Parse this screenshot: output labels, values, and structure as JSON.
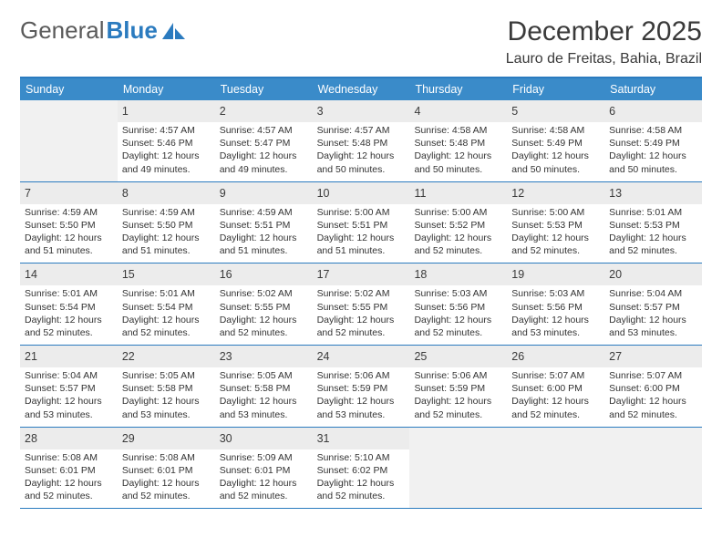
{
  "logo": {
    "word1": "General",
    "word2": "Blue",
    "text_color": "#5a5a5a",
    "accent_color": "#2b7bbf"
  },
  "title": "December 2025",
  "location": "Lauro de Freitas, Bahia, Brazil",
  "colors": {
    "header_bg": "#3a8bc9",
    "header_text": "#ffffff",
    "border": "#2b7bbf",
    "daynum_bg": "#ececec",
    "empty_bg": "#f1f1f1",
    "text": "#333333",
    "background": "#ffffff"
  },
  "fonts": {
    "title_size": 30,
    "location_size": 16,
    "dayhead_size": 12.5,
    "daynum_size": 12.5,
    "info_size": 10.5
  },
  "day_labels": [
    "Sunday",
    "Monday",
    "Tuesday",
    "Wednesday",
    "Thursday",
    "Friday",
    "Saturday"
  ],
  "start_offset": 1,
  "days": [
    {
      "n": "1",
      "sunrise": "4:57 AM",
      "sunset": "5:46 PM",
      "daylight": "12 hours and 49 minutes."
    },
    {
      "n": "2",
      "sunrise": "4:57 AM",
      "sunset": "5:47 PM",
      "daylight": "12 hours and 49 minutes."
    },
    {
      "n": "3",
      "sunrise": "4:57 AM",
      "sunset": "5:48 PM",
      "daylight": "12 hours and 50 minutes."
    },
    {
      "n": "4",
      "sunrise": "4:58 AM",
      "sunset": "5:48 PM",
      "daylight": "12 hours and 50 minutes."
    },
    {
      "n": "5",
      "sunrise": "4:58 AM",
      "sunset": "5:49 PM",
      "daylight": "12 hours and 50 minutes."
    },
    {
      "n": "6",
      "sunrise": "4:58 AM",
      "sunset": "5:49 PM",
      "daylight": "12 hours and 50 minutes."
    },
    {
      "n": "7",
      "sunrise": "4:59 AM",
      "sunset": "5:50 PM",
      "daylight": "12 hours and 51 minutes."
    },
    {
      "n": "8",
      "sunrise": "4:59 AM",
      "sunset": "5:50 PM",
      "daylight": "12 hours and 51 minutes."
    },
    {
      "n": "9",
      "sunrise": "4:59 AM",
      "sunset": "5:51 PM",
      "daylight": "12 hours and 51 minutes."
    },
    {
      "n": "10",
      "sunrise": "5:00 AM",
      "sunset": "5:51 PM",
      "daylight": "12 hours and 51 minutes."
    },
    {
      "n": "11",
      "sunrise": "5:00 AM",
      "sunset": "5:52 PM",
      "daylight": "12 hours and 52 minutes."
    },
    {
      "n": "12",
      "sunrise": "5:00 AM",
      "sunset": "5:53 PM",
      "daylight": "12 hours and 52 minutes."
    },
    {
      "n": "13",
      "sunrise": "5:01 AM",
      "sunset": "5:53 PM",
      "daylight": "12 hours and 52 minutes."
    },
    {
      "n": "14",
      "sunrise": "5:01 AM",
      "sunset": "5:54 PM",
      "daylight": "12 hours and 52 minutes."
    },
    {
      "n": "15",
      "sunrise": "5:01 AM",
      "sunset": "5:54 PM",
      "daylight": "12 hours and 52 minutes."
    },
    {
      "n": "16",
      "sunrise": "5:02 AM",
      "sunset": "5:55 PM",
      "daylight": "12 hours and 52 minutes."
    },
    {
      "n": "17",
      "sunrise": "5:02 AM",
      "sunset": "5:55 PM",
      "daylight": "12 hours and 52 minutes."
    },
    {
      "n": "18",
      "sunrise": "5:03 AM",
      "sunset": "5:56 PM",
      "daylight": "12 hours and 52 minutes."
    },
    {
      "n": "19",
      "sunrise": "5:03 AM",
      "sunset": "5:56 PM",
      "daylight": "12 hours and 53 minutes."
    },
    {
      "n": "20",
      "sunrise": "5:04 AM",
      "sunset": "5:57 PM",
      "daylight": "12 hours and 53 minutes."
    },
    {
      "n": "21",
      "sunrise": "5:04 AM",
      "sunset": "5:57 PM",
      "daylight": "12 hours and 53 minutes."
    },
    {
      "n": "22",
      "sunrise": "5:05 AM",
      "sunset": "5:58 PM",
      "daylight": "12 hours and 53 minutes."
    },
    {
      "n": "23",
      "sunrise": "5:05 AM",
      "sunset": "5:58 PM",
      "daylight": "12 hours and 53 minutes."
    },
    {
      "n": "24",
      "sunrise": "5:06 AM",
      "sunset": "5:59 PM",
      "daylight": "12 hours and 53 minutes."
    },
    {
      "n": "25",
      "sunrise": "5:06 AM",
      "sunset": "5:59 PM",
      "daylight": "12 hours and 52 minutes."
    },
    {
      "n": "26",
      "sunrise": "5:07 AM",
      "sunset": "6:00 PM",
      "daylight": "12 hours and 52 minutes."
    },
    {
      "n": "27",
      "sunrise": "5:07 AM",
      "sunset": "6:00 PM",
      "daylight": "12 hours and 52 minutes."
    },
    {
      "n": "28",
      "sunrise": "5:08 AM",
      "sunset": "6:01 PM",
      "daylight": "12 hours and 52 minutes."
    },
    {
      "n": "29",
      "sunrise": "5:08 AM",
      "sunset": "6:01 PM",
      "daylight": "12 hours and 52 minutes."
    },
    {
      "n": "30",
      "sunrise": "5:09 AM",
      "sunset": "6:01 PM",
      "daylight": "12 hours and 52 minutes."
    },
    {
      "n": "31",
      "sunrise": "5:10 AM",
      "sunset": "6:02 PM",
      "daylight": "12 hours and 52 minutes."
    }
  ],
  "labels": {
    "sunrise": "Sunrise:",
    "sunset": "Sunset:",
    "daylight": "Daylight:"
  }
}
